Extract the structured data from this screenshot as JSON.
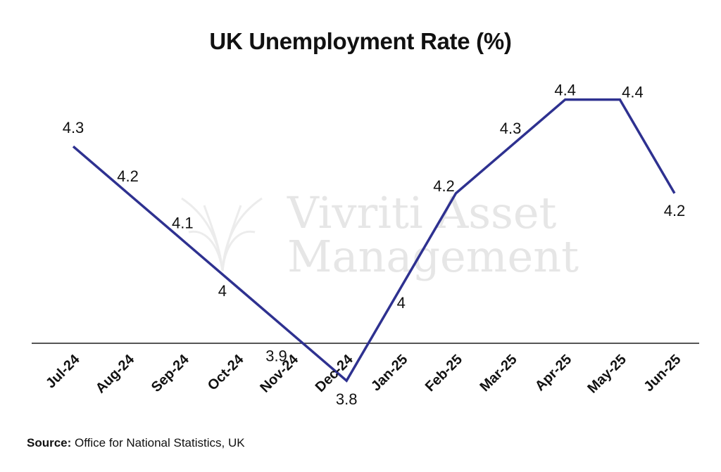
{
  "chart_data": {
    "type": "line",
    "title": "UK Unemployment Rate (%)",
    "xlabel": "",
    "ylabel": "",
    "categories": [
      "Jul-24",
      "Aug-24",
      "Sep-24",
      "Oct-24",
      "Nov-24",
      "Dec-24",
      "Jan-25",
      "Feb-25",
      "Mar-25",
      "Apr-25",
      "May-25",
      "Jun-25"
    ],
    "series": [
      {
        "values": [
          4.3,
          4.2,
          4.1,
          4,
          3.9,
          3.8,
          4,
          4.2,
          4.3,
          4.4,
          4.4,
          4.2
        ]
      }
    ],
    "data_labels": [
      "4.3",
      "4.2",
      "4.1",
      "4",
      "3.9",
      "3.8",
      "4",
      "4.2",
      "4.3",
      "4.4",
      "4.4",
      "4.2"
    ],
    "ylim": [
      3.5,
      4.5
    ],
    "grid": false,
    "legend": "none",
    "line_color": "#2e3190",
    "axis_color": "#555555"
  },
  "watermark": {
    "line1": "Vivriti Asset",
    "line2": "Management",
    "logo_icon": "vivriti-logo-icon"
  },
  "source": {
    "label": "Source:",
    "text": " Office for National Statistics, UK"
  }
}
